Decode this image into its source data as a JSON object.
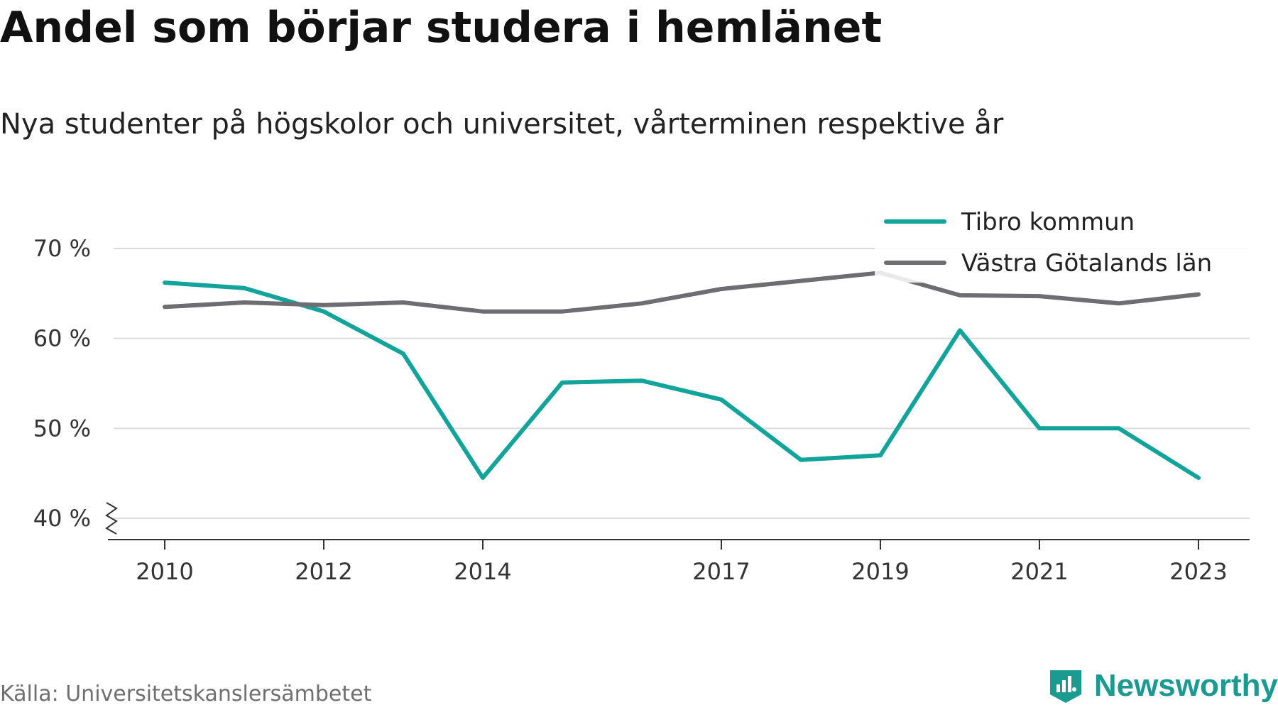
{
  "title": "Andel som börjar studera i hemlänet",
  "subtitle": "Nya studenter på högskolor och universitet, vårterminen respektive år",
  "source": "Källa: Universitetskanslersämbetet",
  "brand": {
    "name": "Newsworthy",
    "icon": "newsworthy-logo-icon",
    "color": "#1a9a90"
  },
  "chart_data": {
    "type": "line",
    "x": [
      2010,
      2011,
      2012,
      2013,
      2014,
      2015,
      2016,
      2017,
      2018,
      2019,
      2020,
      2021,
      2022,
      2023
    ],
    "x_tick_values": [
      2010,
      2012,
      2014,
      2017,
      2019,
      2021,
      2023
    ],
    "x_tick_labels": [
      "2010",
      "2012",
      "2014",
      "2017",
      "2019",
      "2021",
      "2023"
    ],
    "y_tick_values": [
      40,
      50,
      60,
      70
    ],
    "y_tick_labels": [
      "40 %",
      "50 %",
      "60 %",
      "70 %"
    ],
    "ylim": [
      40,
      70
    ],
    "y_axis_break": true,
    "grid": true,
    "legend_position": "top-right",
    "series": [
      {
        "name": "Tibro kommun",
        "color": "#12a39a",
        "values": [
          66.2,
          65.6,
          63.0,
          58.3,
          44.5,
          55.1,
          55.3,
          53.2,
          46.5,
          47.0,
          60.9,
          50.0,
          50.0,
          44.5
        ]
      },
      {
        "name": "Västra Götalands län",
        "color": "#6e6d73",
        "values": [
          63.5,
          64.0,
          63.7,
          64.0,
          63.0,
          63.0,
          63.9,
          65.5,
          66.4,
          67.3,
          64.8,
          64.7,
          63.9,
          64.9
        ]
      }
    ]
  }
}
